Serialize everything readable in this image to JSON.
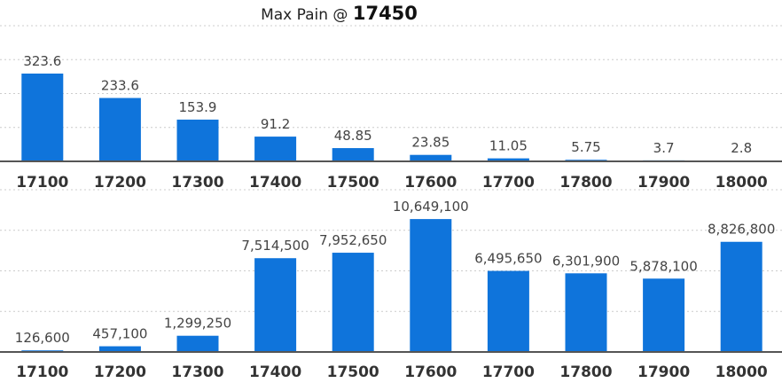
{
  "header": {
    "prefix": "Max Pain @",
    "value": "17450"
  },
  "colors": {
    "bar": "#0f74db",
    "grid": "#cccccc",
    "axis": "#555555"
  },
  "chart_data": [
    {
      "type": "bar",
      "categories": [
        "17100",
        "17200",
        "17300",
        "17400",
        "17500",
        "17600",
        "17700",
        "17800",
        "17900",
        "18000"
      ],
      "values": [
        323.6,
        233.6,
        153.9,
        91.2,
        48.85,
        23.85,
        11.05,
        5.75,
        3.7,
        2.8
      ],
      "labels": [
        "323.6",
        "233.6",
        "153.9",
        "91.2",
        "48.85",
        "23.85",
        "11.05",
        "5.75",
        "3.7",
        "2.8"
      ],
      "ylim": [
        0,
        500
      ],
      "grid": true
    },
    {
      "type": "bar",
      "categories": [
        "17100",
        "17200",
        "17300",
        "17400",
        "17500",
        "17600",
        "17700",
        "17800",
        "17900",
        "18000"
      ],
      "values": [
        126600,
        457100,
        1299250,
        7514500,
        7952650,
        10649100,
        6495650,
        6301900,
        5878100,
        8826800
      ],
      "labels": [
        "126,600",
        "457,100",
        "1,299,250",
        "7,514,500",
        "7,952,650",
        "10,649,100",
        "6,495,650",
        "6,301,900",
        "5,878,100",
        "8,826,800"
      ],
      "ylim": [
        0,
        13000000
      ],
      "grid": true
    }
  ]
}
